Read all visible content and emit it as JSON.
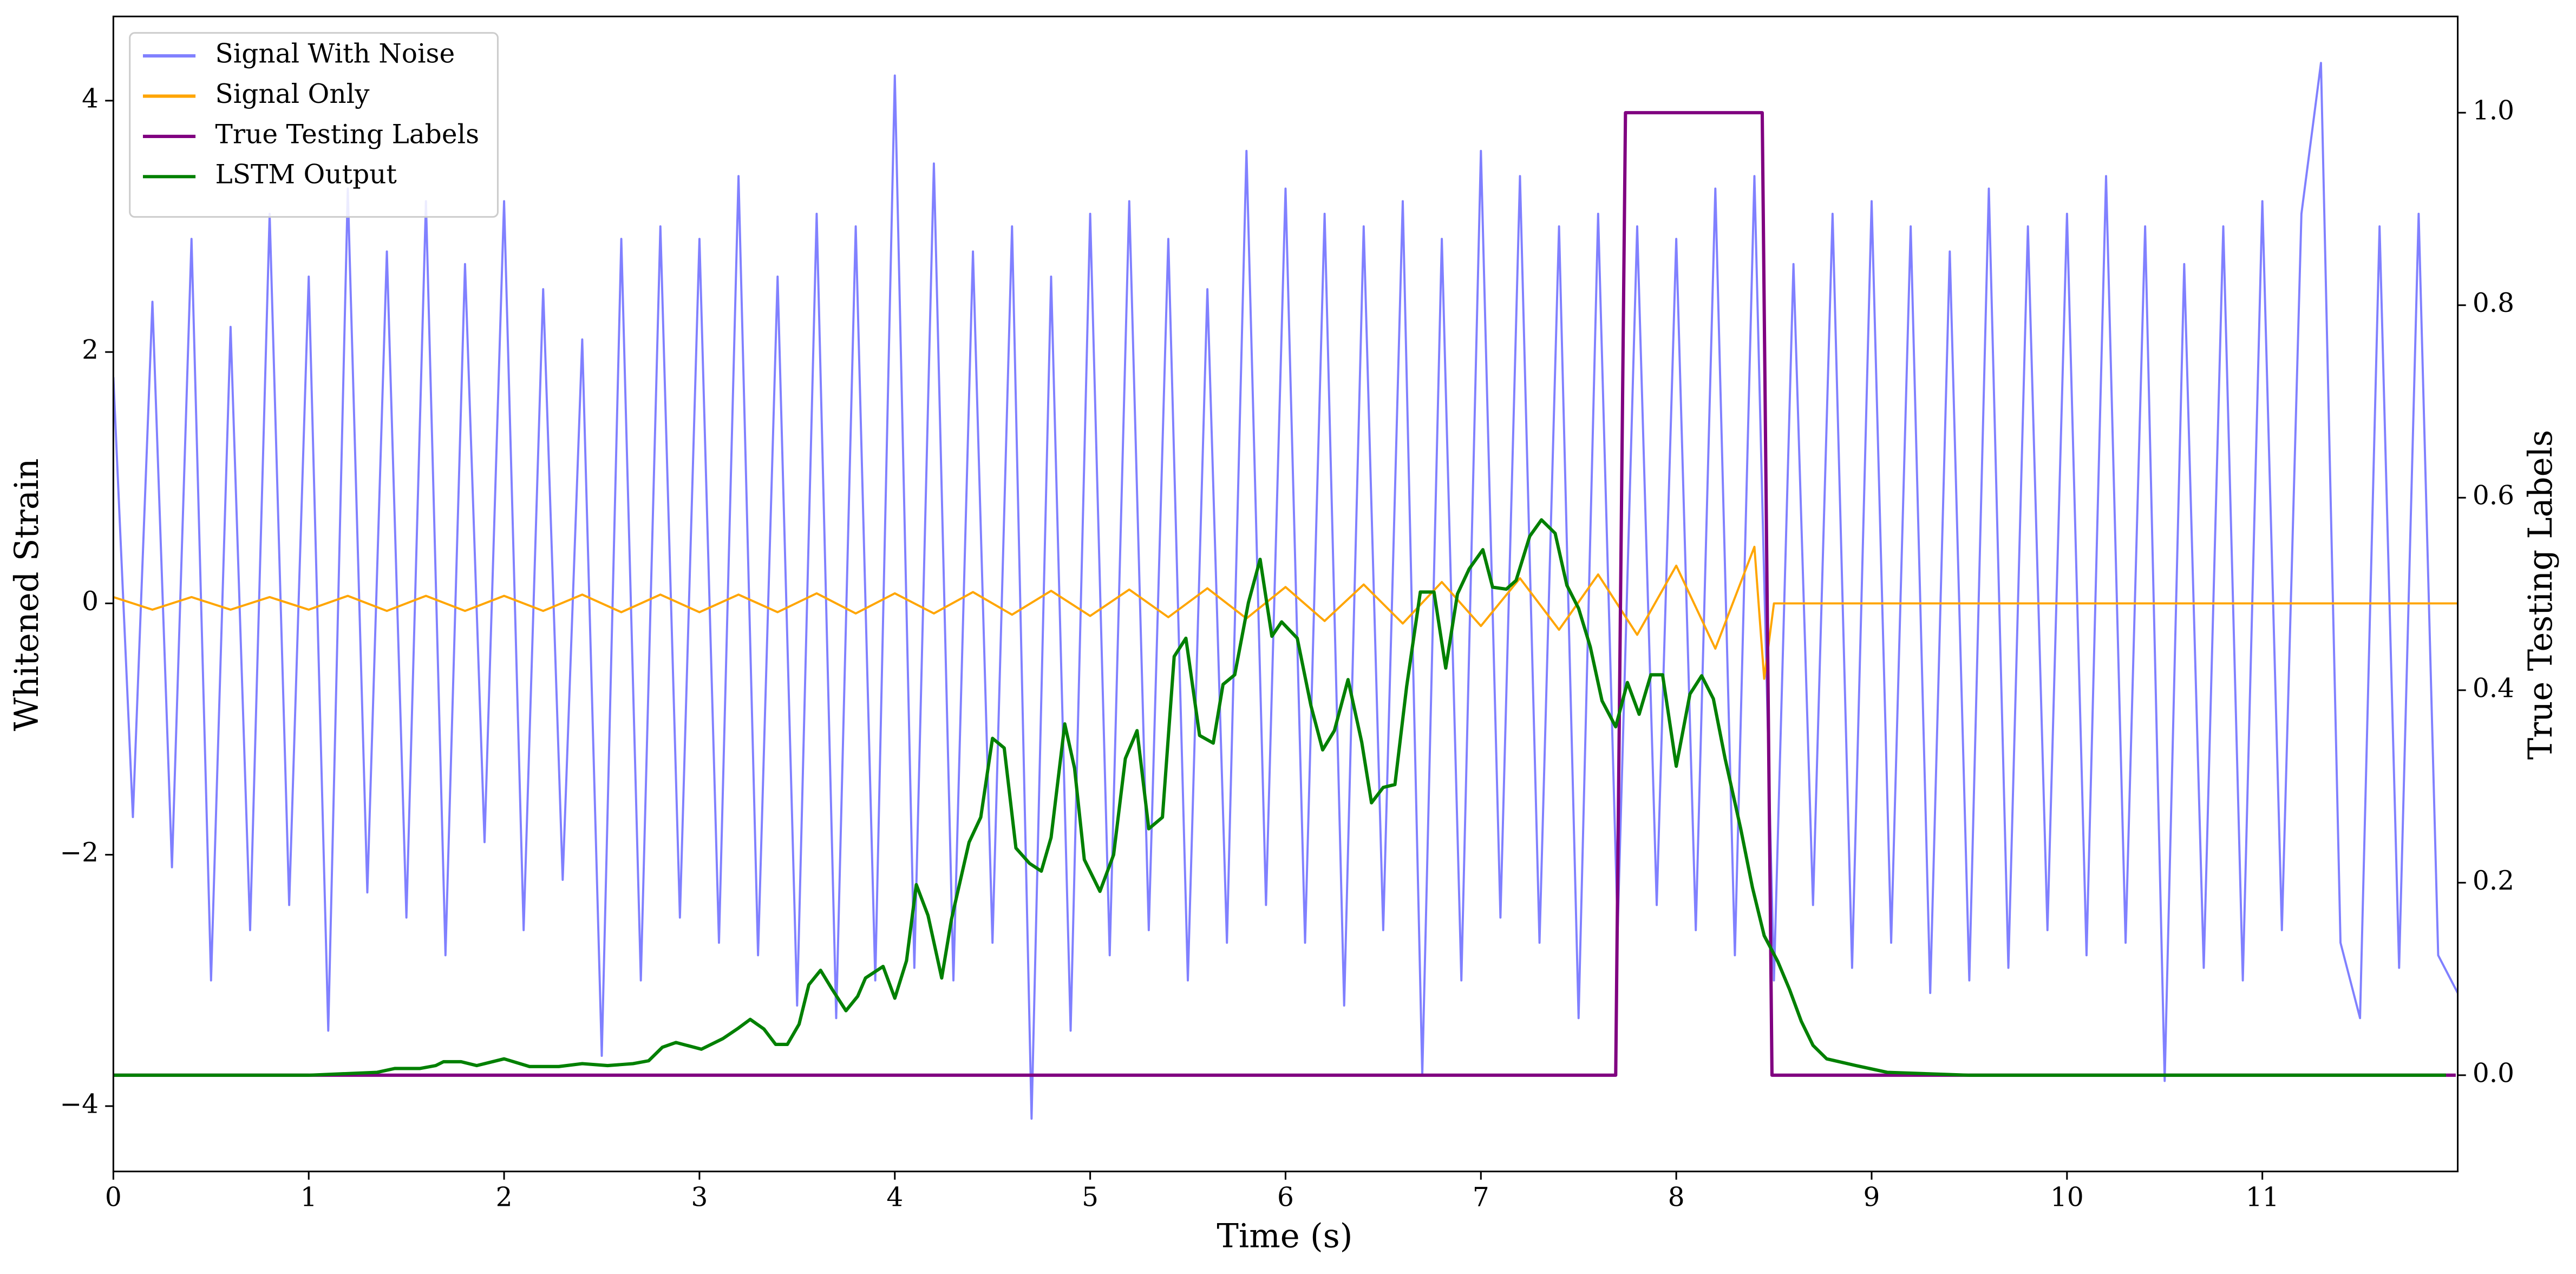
{
  "chart_data": {
    "type": "line",
    "xlabel": "Time (s)",
    "ylabel": "Whitened Strain",
    "y2label": "True Testing Labels",
    "xlim": [
      0,
      12
    ],
    "ylim": [
      -4.52,
      4.67
    ],
    "y2lim": [
      -0.1,
      1.1
    ],
    "xticks": [
      0,
      1,
      2,
      3,
      4,
      5,
      6,
      7,
      8,
      9,
      10,
      11
    ],
    "yticks": [
      {
        "value": -4,
        "label": "−4"
      },
      {
        "value": -2,
        "label": "−2"
      },
      0,
      2,
      4
    ],
    "y2ticks": [
      {
        "value": 0,
        "label": "0.0"
      },
      {
        "value": 0.2,
        "label": "0.2"
      },
      {
        "value": 0.4,
        "label": "0.4"
      },
      {
        "value": 0.6,
        "label": "0.6"
      },
      {
        "value": 0.8,
        "label": "0.8"
      },
      {
        "value": 1,
        "label": "1.0"
      }
    ],
    "legend": "upper left",
    "series": [
      {
        "name": "Signal With Noise",
        "color": "#8080ff",
        "x": [
          0,
          0.1,
          0.2,
          0.3,
          0.4,
          0.5,
          0.6,
          0.7,
          0.8,
          0.9,
          1,
          1.1,
          1.2,
          1.3,
          1.4,
          1.5,
          1.6,
          1.7,
          1.8,
          1.9,
          2,
          2.1,
          2.2,
          2.3,
          2.4,
          2.5,
          2.6,
          2.7,
          2.8,
          2.9,
          3,
          3.1,
          3.2,
          3.3,
          3.4,
          3.5,
          3.6,
          3.7,
          3.8,
          3.9,
          4,
          4.1,
          4.2,
          4.3,
          4.4,
          4.5,
          4.6,
          4.7,
          4.8,
          4.9,
          5,
          5.1,
          5.2,
          5.3,
          5.4,
          5.5,
          5.6,
          5.7,
          5.8,
          5.9,
          6,
          6.1,
          6.2,
          6.3,
          6.4,
          6.5,
          6.6,
          6.7,
          6.8,
          6.9,
          7,
          7.1,
          7.2,
          7.3,
          7.4,
          7.5,
          7.6,
          7.7,
          7.8,
          7.9,
          8,
          8.1,
          8.2,
          8.3,
          8.4,
          8.5,
          8.6,
          8.7,
          8.8,
          8.9,
          9,
          9.1,
          9.2,
          9.3,
          9.4,
          9.5,
          9.6,
          9.7,
          9.8,
          9.9,
          10,
          10.1,
          10.2,
          10.3,
          10.4,
          10.5,
          10.6,
          10.7,
          10.8,
          10.9,
          11,
          11.1,
          11.2,
          11.3,
          11.4,
          11.5,
          11.6,
          11.7,
          11.8,
          11.9,
          12
        ],
        "values": [
          1.8,
          -1.7,
          2.4,
          -2.1,
          2.9,
          -3.0,
          2.2,
          -2.6,
          3.1,
          -2.4,
          2.6,
          -3.4,
          3.3,
          -2.3,
          2.8,
          -2.5,
          3.2,
          -2.8,
          2.7,
          -1.9,
          3.2,
          -2.6,
          2.5,
          -2.2,
          2.1,
          -3.6,
          2.9,
          -3.0,
          3.0,
          -2.5,
          2.9,
          -2.7,
          3.4,
          -2.8,
          2.6,
          -3.2,
          3.1,
          -3.3,
          3.0,
          -3.0,
          4.2,
          -2.9,
          3.5,
          -3.0,
          2.8,
          -2.7,
          3.0,
          -4.1,
          2.6,
          -3.4,
          3.1,
          -2.8,
          3.2,
          -2.6,
          2.9,
          -3.0,
          2.5,
          -2.7,
          3.6,
          -2.4,
          3.3,
          -2.7,
          3.1,
          -3.2,
          3.0,
          -2.6,
          3.2,
          -3.75,
          2.9,
          -3.0,
          3.6,
          -2.5,
          3.4,
          -2.7,
          3.0,
          -3.3,
          3.1,
          -2.6,
          3.0,
          -2.4,
          2.9,
          -2.6,
          3.3,
          -2.8,
          3.4,
          -3.0,
          2.7,
          -2.4,
          3.1,
          -2.9,
          3.2,
          -2.7,
          3.0,
          -3.1,
          2.8,
          -3.0,
          3.3,
          -2.9,
          3.0,
          -2.6,
          3.1,
          -2.8,
          3.4,
          -2.7,
          3.0,
          -3.8,
          2.7,
          -2.9,
          3.0,
          -3.0,
          3.2,
          -2.6,
          3.1,
          4.3,
          -2.7,
          -3.3,
          3.0,
          -2.9,
          3.1,
          -2.8,
          -3.1
        ]
      },
      {
        "name": "Signal Only",
        "color": "#ffa500",
        "x": [
          0,
          0.2,
          0.4,
          0.6,
          0.8,
          1,
          1.2,
          1.4,
          1.6,
          1.8,
          2,
          2.2,
          2.4,
          2.6,
          2.8,
          3,
          3.2,
          3.4,
          3.6,
          3.8,
          4,
          4.2,
          4.4,
          4.6,
          4.8,
          5,
          5.2,
          5.4,
          5.6,
          5.8,
          6,
          6.2,
          6.4,
          6.6,
          6.8,
          7,
          7.2,
          7.4,
          7.6,
          7.8,
          8,
          8.2,
          8.4,
          8.45,
          8.5,
          12
        ],
        "values": [
          0.05,
          -0.05,
          0.05,
          -0.05,
          0.05,
          -0.05,
          0.06,
          -0.06,
          0.06,
          -0.06,
          0.06,
          -0.06,
          0.07,
          -0.07,
          0.07,
          -0.07,
          0.07,
          -0.07,
          0.08,
          -0.08,
          0.08,
          -0.08,
          0.09,
          -0.09,
          0.1,
          -0.1,
          0.11,
          -0.11,
          0.12,
          -0.12,
          0.13,
          -0.14,
          0.15,
          -0.16,
          0.17,
          -0.18,
          0.2,
          -0.21,
          0.23,
          -0.25,
          0.3,
          -0.36,
          0.45,
          -0.6,
          0,
          0
        ]
      },
      {
        "name": "True Testing Labels",
        "color": "#800080",
        "axis": "y2",
        "x": [
          0,
          7.69,
          7.74,
          8.44,
          8.49,
          11.99
        ],
        "values": [
          0,
          0,
          1,
          1,
          0,
          0
        ]
      },
      {
        "name": "LSTM Output",
        "color": "#008000",
        "axis": "y2",
        "x": [
          0,
          1.0,
          1.35,
          1.44,
          1.57,
          1.65,
          1.69,
          1.78,
          1.86,
          2.0,
          2.13,
          2.28,
          2.4,
          2.53,
          2.66,
          2.74,
          2.81,
          2.88,
          3.01,
          3.12,
          3.2,
          3.26,
          3.33,
          3.39,
          3.45,
          3.51,
          3.56,
          3.62,
          3.68,
          3.75,
          3.81,
          3.85,
          3.94,
          4.0,
          4.06,
          4.11,
          4.17,
          4.24,
          4.29,
          4.38,
          4.44,
          4.5,
          4.56,
          4.62,
          4.69,
          4.75,
          4.8,
          4.87,
          4.92,
          4.97,
          5.05,
          5.12,
          5.18,
          5.24,
          5.3,
          5.37,
          5.43,
          5.49,
          5.56,
          5.63,
          5.68,
          5.74,
          5.81,
          5.87,
          5.93,
          5.98,
          6.06,
          6.13,
          6.19,
          6.25,
          6.32,
          6.39,
          6.44,
          6.5,
          6.56,
          6.62,
          6.69,
          6.76,
          6.82,
          6.88,
          6.94,
          7.01,
          7.06,
          7.13,
          7.18,
          7.25,
          7.31,
          7.38,
          7.44,
          7.5,
          7.56,
          7.62,
          7.69,
          7.75,
          7.81,
          7.87,
          7.93,
          8.0,
          8.07,
          8.13,
          8.19,
          8.25,
          8.33,
          8.39,
          8.45,
          8.52,
          8.58,
          8.64,
          8.7,
          8.77,
          8.92,
          9.08,
          9.5,
          11.94
        ],
        "values": [
          0,
          0,
          0.003,
          0.007,
          0.007,
          0.01,
          0.014,
          0.014,
          0.01,
          0.017,
          0.009,
          0.009,
          0.012,
          0.01,
          0.012,
          0.015,
          0.029,
          0.034,
          0.027,
          0.038,
          0.049,
          0.058,
          0.048,
          0.032,
          0.032,
          0.053,
          0.094,
          0.109,
          0.089,
          0.067,
          0.082,
          0.101,
          0.113,
          0.08,
          0.119,
          0.198,
          0.166,
          0.101,
          0.162,
          0.242,
          0.268,
          0.35,
          0.34,
          0.236,
          0.22,
          0.212,
          0.247,
          0.365,
          0.319,
          0.224,
          0.191,
          0.229,
          0.329,
          0.358,
          0.256,
          0.268,
          0.435,
          0.454,
          0.353,
          0.345,
          0.406,
          0.416,
          0.491,
          0.536,
          0.456,
          0.471,
          0.454,
          0.384,
          0.338,
          0.358,
          0.411,
          0.346,
          0.283,
          0.299,
          0.302,
          0.404,
          0.502,
          0.502,
          0.423,
          0.5,
          0.526,
          0.546,
          0.507,
          0.505,
          0.514,
          0.56,
          0.577,
          0.563,
          0.509,
          0.485,
          0.445,
          0.389,
          0.362,
          0.408,
          0.375,
          0.416,
          0.416,
          0.321,
          0.396,
          0.415,
          0.391,
          0.329,
          0.256,
          0.195,
          0.145,
          0.118,
          0.089,
          0.056,
          0.031,
          0.017,
          0.01,
          0.003,
          0,
          0
        ]
      }
    ]
  }
}
